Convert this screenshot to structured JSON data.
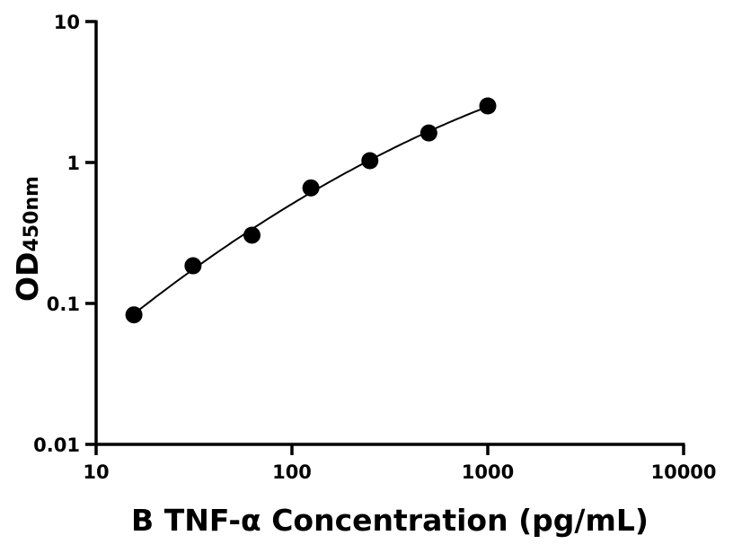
{
  "chart_data": {
    "type": "scatter",
    "title": "",
    "xlabel": "B TNF-α Concentration (pg/mL)",
    "ylabel_main": "OD",
    "ylabel_sub": "450nm",
    "xscale": "log",
    "yscale": "log",
    "xlim": [
      10,
      10000
    ],
    "ylim": [
      0.01,
      10
    ],
    "xticks": [
      "10",
      "100",
      "1000",
      "10000"
    ],
    "yticks": [
      "0.01",
      "0.1",
      "1",
      "10"
    ],
    "grid": false,
    "fit_line": true,
    "point_color": "#000000",
    "x": [
      15.6,
      31.25,
      62.5,
      125,
      250,
      500,
      1000
    ],
    "y": [
      0.083,
      0.185,
      0.305,
      0.66,
      1.03,
      1.62,
      2.52
    ]
  }
}
